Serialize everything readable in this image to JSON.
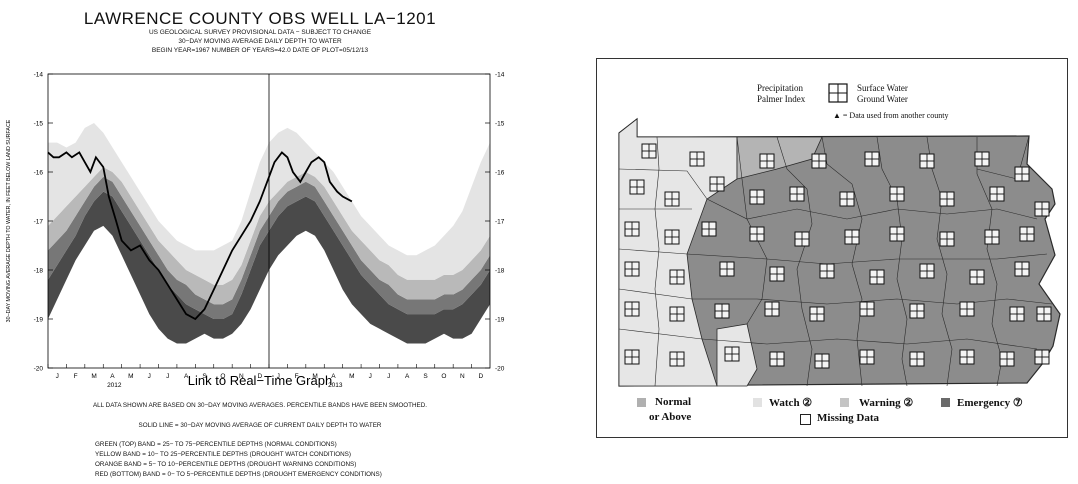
{
  "hydrograph": {
    "title": "LAWRENCE COUNTY OBS WELL LA−1201",
    "subtitle_lines": [
      "US GEOLOGICAL SURVEY PROVISIONAL DATA − SUBJECT TO CHANGE",
      "30−DAY MOVING AVERAGE DAILY DEPTH TO WATER",
      "BEGIN YEAR=1967 NUMBER OF YEARS=42.0 DATE OF PLOT=05/12/13"
    ],
    "link_text": "Link to Real−Time Graph",
    "note_lines": [
      "ALL DATA SHOWN ARE BASED ON 30−DAY MOVING AVERAGES. PERCENTILE BANDS HAVE BEEN SMOOTHED.",
      "SOLID LINE = 30−DAY MOVING AVERAGE OF CURRENT DAILY DEPTH TO WATER",
      "GREEN (TOP) BAND = 25− TO 75−PERCENTILE DEPTHS (NORMAL CONDITIONS)",
      "YELLOW BAND = 10− TO 25−PERCENTILE DEPTHS (DROUGHT WATCH CONDITIONS)",
      "ORANGE BAND = 5− TO 10−PERCENTILE DEPTHS (DROUGHT WARNING CONDITIONS)",
      "RED (BOTTOM) BAND = 0− TO 5−PERCENTILE DEPTHS (DROUGHT EMERGENCY CONDITIONS)"
    ]
  },
  "chart_data": [
    {
      "type": "area",
      "title": "LAWRENCE COUNTY OBS WELL LA−1201",
      "ylabel": "30−DAY MOVING AVERAGE DEPTH TO WATER, IN FEET BELOW LAND SURFACE",
      "xlabel": "",
      "yticks": [
        "-14",
        "-15",
        "-16",
        "-17",
        "-18",
        "-19",
        "-20"
      ],
      "ylim": [
        -20,
        -14
      ],
      "y_inverted_direction": "less negative at top",
      "month_labels": [
        "J",
        "F",
        "M",
        "A",
        "M",
        "J",
        "J",
        "A",
        "S",
        "O",
        "N",
        "D",
        "J",
        "F",
        "M",
        "A",
        "M",
        "J",
        "J",
        "A",
        "S",
        "O",
        "N",
        "D"
      ],
      "year_labels": [
        "2012",
        "2013"
      ],
      "x": [
        0,
        0.5,
        1,
        1.5,
        2,
        2.5,
        3,
        3.5,
        4,
        4.5,
        5,
        5.5,
        6,
        6.5,
        7,
        7.5,
        8,
        8.5,
        9,
        9.5,
        10,
        10.5,
        11,
        11.5,
        12,
        12.5,
        13,
        13.5,
        14,
        14.5,
        15,
        15.5,
        16,
        16.5,
        17,
        17.5,
        18,
        18.5,
        19,
        19.5,
        20,
        20.5,
        21,
        21.5,
        22,
        22.5,
        23,
        23.5,
        24
      ],
      "bands": {
        "red_bottom": {
          "lower": [
            -19.0,
            -18.6,
            -18.2,
            -17.8,
            -17.5,
            -17.2,
            -17.1,
            -17.3,
            -17.7,
            -18.1,
            -18.5,
            -18.9,
            -19.2,
            -19.4,
            -19.5,
            -19.5,
            -19.4,
            -19.3,
            -19.4,
            -19.4,
            -19.3,
            -19.1,
            -18.8,
            -18.4,
            -18.0,
            -17.7,
            -17.5,
            -17.3,
            -17.2,
            -17.3,
            -17.6,
            -18.0,
            -18.4,
            -18.7,
            -18.9,
            -19.1,
            -19.2,
            -19.3,
            -19.4,
            -19.5,
            -19.5,
            -19.5,
            -19.4,
            -19.3,
            -19.4,
            -19.4,
            -19.3,
            -19.0,
            -18.7
          ],
          "upper": [
            -18.2,
            -17.9,
            -17.6,
            -17.3,
            -16.9,
            -16.6,
            -16.4,
            -16.5,
            -16.8,
            -17.1,
            -17.4,
            -17.7,
            -18.0,
            -18.3,
            -18.5,
            -18.7,
            -18.8,
            -18.9,
            -19.0,
            -19.0,
            -18.9,
            -18.5,
            -18.0,
            -17.5,
            -17.2,
            -16.9,
            -16.7,
            -16.6,
            -16.5,
            -16.6,
            -16.9,
            -17.2,
            -17.5,
            -17.8,
            -18.1,
            -18.3,
            -18.5,
            -18.7,
            -18.8,
            -18.9,
            -18.9,
            -18.9,
            -18.9,
            -18.8,
            -18.8,
            -18.7,
            -18.5,
            -18.3,
            -18.0
          ]
        },
        "orange": {
          "upper": [
            -17.6,
            -17.4,
            -17.2,
            -16.9,
            -16.6,
            -16.3,
            -16.1,
            -16.2,
            -16.5,
            -16.8,
            -17.1,
            -17.4,
            -17.7,
            -18.0,
            -18.2,
            -18.3,
            -18.5,
            -18.6,
            -18.7,
            -18.7,
            -18.6,
            -18.2,
            -17.7,
            -17.2,
            -16.9,
            -16.6,
            -16.4,
            -16.3,
            -16.2,
            -16.3,
            -16.6,
            -16.9,
            -17.2,
            -17.5,
            -17.8,
            -18.0,
            -18.2,
            -18.3,
            -18.5,
            -18.6,
            -18.6,
            -18.6,
            -18.6,
            -18.5,
            -18.5,
            -18.4,
            -18.2,
            -18.0,
            -17.7
          ]
        },
        "yellow": {
          "upper": [
            -17.1,
            -16.9,
            -16.7,
            -16.5,
            -16.3,
            -16.1,
            -15.9,
            -16.0,
            -16.2,
            -16.5,
            -16.8,
            -17.1,
            -17.4,
            -17.6,
            -17.8,
            -18.0,
            -18.1,
            -18.2,
            -18.3,
            -18.3,
            -18.2,
            -17.9,
            -17.4,
            -16.9,
            -16.6,
            -16.4,
            -16.2,
            -16.1,
            -16.0,
            -16.1,
            -16.3,
            -16.6,
            -16.9,
            -17.2,
            -17.4,
            -17.6,
            -17.8,
            -17.9,
            -18.1,
            -18.2,
            -18.2,
            -18.2,
            -18.2,
            -18.1,
            -18.1,
            -18.0,
            -17.8,
            -17.6,
            -17.3
          ]
        },
        "green_top": {
          "upper": [
            -15.4,
            -15.4,
            -15.5,
            -15.4,
            -15.1,
            -15.0,
            -15.2,
            -15.5,
            -15.8,
            -16.1,
            -16.4,
            -16.7,
            -17.0,
            -17.2,
            -17.4,
            -17.5,
            -17.6,
            -17.6,
            -17.6,
            -17.5,
            -17.4,
            -17.0,
            -16.4,
            -15.8,
            -15.4,
            -15.2,
            -15.1,
            -15.2,
            -15.4,
            -15.6,
            -15.8,
            -16.0,
            -16.3,
            -16.6,
            -16.9,
            -17.1,
            -17.3,
            -17.5,
            -17.6,
            -17.7,
            -17.7,
            -17.6,
            -17.5,
            -17.3,
            -17.1,
            -16.8,
            -16.3,
            -15.8,
            -15.4
          ]
        }
      },
      "current_series": {
        "name": "30−DAY MOVING AVERAGE OF CURRENT DAILY DEPTH TO WATER",
        "x": [
          0,
          0.3,
          0.6,
          1,
          1.3,
          1.7,
          2,
          2.3,
          2.6,
          3,
          3.3,
          3.7,
          4,
          4.5,
          5,
          5.5,
          6,
          6.5,
          7,
          7.5,
          8,
          8.5,
          9,
          9.5,
          10,
          10.5,
          11,
          11.5,
          12,
          12.3,
          12.7,
          13,
          13.3,
          13.7,
          14,
          14.3,
          14.7,
          15,
          15.3,
          15.7,
          16,
          16.5
        ],
        "y": [
          -15.6,
          -15.7,
          -15.7,
          -15.6,
          -15.7,
          -15.6,
          -15.8,
          -16.0,
          -15.7,
          -15.9,
          -16.5,
          -17.0,
          -17.4,
          -17.6,
          -17.5,
          -17.8,
          -18.0,
          -18.3,
          -18.6,
          -18.9,
          -19.0,
          -18.8,
          -18.4,
          -18.0,
          -17.6,
          -17.3,
          -17.0,
          -16.6,
          -16.1,
          -15.8,
          -15.6,
          -15.7,
          -16.0,
          -16.2,
          -16.0,
          -15.8,
          -15.7,
          -15.8,
          -16.2,
          -16.4,
          -16.5,
          -16.6
        ]
      },
      "colors": {
        "red_bottom": "#4a4a4a",
        "orange": "#777777",
        "yellow": "#b9b9b9",
        "green_top": "#e4e4e4",
        "current_line": "#000000"
      }
    }
  ],
  "map": {
    "legend": {
      "precipitation": "Precipitation",
      "palmer_index": "Palmer Index",
      "surface_water": "Surface Water",
      "ground_water": "Ground Water",
      "data_note": "▲ = Data used from another county"
    },
    "bottom_legend": {
      "normal": "Normal",
      "or_above": "or Above",
      "watch": "Watch ②",
      "warning": "Warning ②",
      "emergency": "Emergency ⑦",
      "missing": "Missing Data"
    },
    "colors": {
      "normal": "#e6e6e6",
      "watch": "#f2f2f2",
      "warning": "#b4b4b4",
      "emergency": "#8c8c8c",
      "border": "#2a2a2a"
    }
  }
}
